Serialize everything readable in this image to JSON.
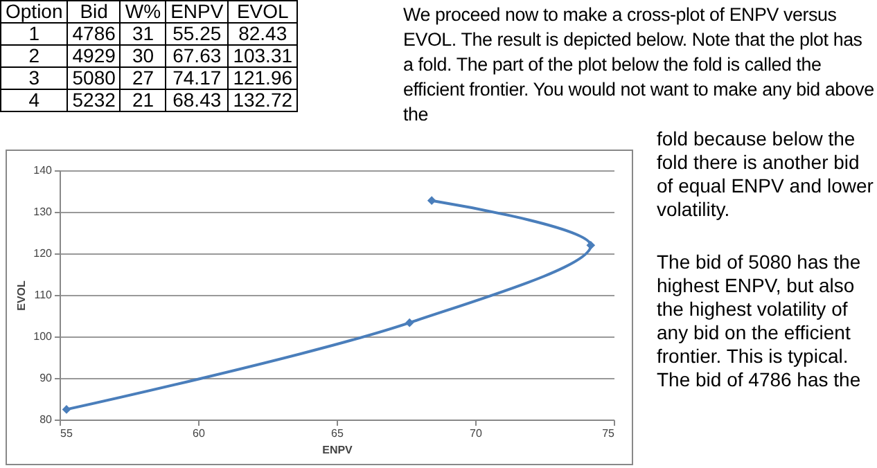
{
  "chart_data": {
    "type": "line",
    "xlabel": "ENPV",
    "ylabel": "EVOL",
    "x": [
      55.25,
      67.63,
      74.17,
      68.43
    ],
    "series": [
      {
        "color": "#4a7ebb",
        "values": [
          82.43,
          103.31,
          121.96,
          132.72
        ]
      }
    ],
    "xlim": [
      55,
      75
    ],
    "xticks": [
      55,
      60,
      65,
      70,
      75
    ],
    "ylim": [
      80,
      140
    ],
    "yticks": [
      80,
      90,
      100,
      110,
      120,
      130,
      140
    ],
    "grid": "y",
    "marker": "diamond",
    "line_style": "solid",
    "annotations": [
      "Option Bid W% ENPV EVOL",
      "1 4786 31 55.25 82.43",
      "2 4929 30 67.63 103.31",
      "3 5080 27 74.17 121.96",
      "4 5232 21 68.43 132.72",
      "We proceed now to make a cross-plot of ENPV versus EVOL. The result is depicted below. Note that the plot has a fold. The part of the plot below the fold is called the efficient frontier. You would not want to make any bid above the",
      "fold because below the fold there is another bid of equal ENPV and lower volatility.",
      "The bid of 5080 has the highest ENPV, but also the highest volatility of any bid on the efficient frontier. This is typical. The bid of 4786 has the"
    ]
  }
}
